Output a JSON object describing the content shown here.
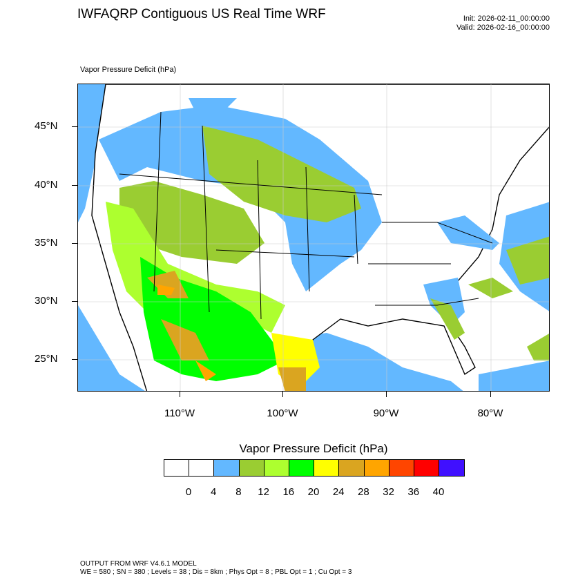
{
  "header": {
    "title": "IWFAQRP Contiguous US Real Time WRF",
    "init": "Init: 2026-02-11_00:00:00",
    "valid": "Valid: 2026-02-16_00:00:00",
    "field": "Vapor Pressure Deficit   (hPa)"
  },
  "map": {
    "lat_labels": [
      "45°N",
      "40°N",
      "35°N",
      "30°N",
      "25°N"
    ],
    "lon_labels": [
      "110°W",
      "100°W",
      "90°W",
      "80°W"
    ]
  },
  "colorbar": {
    "title": "Vapor Pressure Deficit  (hPa)",
    "colors": [
      "#ffffff",
      "#ffffff",
      "#63b8ff",
      "#9acd32",
      "#adff2f",
      "#00ff00",
      "#ffff00",
      "#daa520",
      "#ffa500",
      "#ff4500",
      "#ff0000",
      "#4010ff"
    ],
    "labels": [
      "0",
      "4",
      "8",
      "12",
      "16",
      "20",
      "24",
      "28",
      "32",
      "36",
      "40"
    ]
  },
  "footer": {
    "line1": "OUTPUT FROM WRF V4.6.1 MODEL",
    "line2": "WE = 580 ; SN = 380 ; Levels = 38 ; Dis = 8km ; Phys Opt = 8 ; PBL Opt = 1 ; Cu Opt = 3"
  }
}
